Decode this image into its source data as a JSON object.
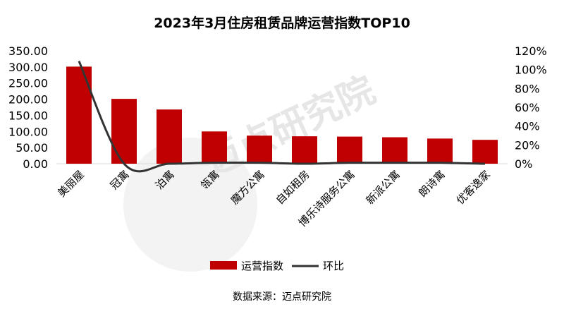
{
  "chart_data": {
    "type": "bar",
    "title": "2023年3月住房租赁品牌运营指数TOP10",
    "categories": [
      "美丽屋",
      "冠寓",
      "泊寓",
      "瓴寓",
      "魔方公寓",
      "自如租房",
      "博乐诗服务公寓",
      "新派公寓",
      "朗诗寓",
      "优客逸家"
    ],
    "series": [
      {
        "name": "运营指数",
        "type": "bar",
        "axis": "left",
        "color": "#c00000",
        "values": [
          301,
          201,
          168,
          100,
          87,
          85,
          84,
          82,
          78,
          74
        ]
      },
      {
        "name": "环比",
        "type": "line",
        "axis": "right",
        "color": "#333333",
        "values": [
          1.09,
          0.0,
          0.0,
          0.01,
          0.01,
          0.0,
          0.01,
          0.01,
          0.01,
          0.0
        ]
      }
    ],
    "left_axis": {
      "ylim": [
        0,
        350
      ],
      "ticks": [
        "0.00",
        "50.00",
        "100.00",
        "150.00",
        "200.00",
        "250.00",
        "300.00",
        "350.00"
      ]
    },
    "right_axis": {
      "ylim": [
        0,
        1.2
      ],
      "ticks": [
        "0%",
        "20%",
        "40%",
        "60%",
        "80%",
        "100%",
        "120%"
      ]
    },
    "grid": false,
    "legend_position": "bottom"
  },
  "source": "数据来源：迈点研究院",
  "watermark": "迈点研究院 MEADIN ACADEMY"
}
